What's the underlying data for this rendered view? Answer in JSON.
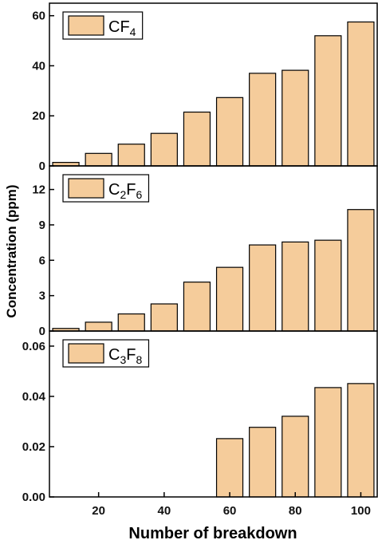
{
  "chart_data": {
    "type": "bar",
    "x": [
      10,
      20,
      30,
      40,
      50,
      60,
      70,
      80,
      90,
      100
    ],
    "xlabel": "Number of breakdown",
    "xlim": [
      5,
      105
    ],
    "xticks": [
      "20",
      "40",
      "60",
      "80",
      "100"
    ],
    "ylabel": "Concentration (ppm)",
    "bar_color": "#f5cc9b",
    "bar_edge_color": "#000000",
    "grid": false,
    "panels": [
      {
        "legend": {
          "base": "C",
          "sub1": "F",
          "sub2": "4",
          "position": "top-left"
        },
        "legend_parts": [
          [
            "CF",
            ""
          ],
          [
            "4",
            "sub"
          ]
        ],
        "ylim": [
          0,
          65
        ],
        "yticks": [
          "0",
          "20",
          "40",
          "60"
        ],
        "values": [
          1.4,
          5.0,
          8.7,
          13.0,
          21.5,
          27.3,
          37.0,
          38.2,
          52.0,
          57.5
        ]
      },
      {
        "legend_parts": [
          [
            "C",
            ""
          ],
          [
            "2",
            "sub"
          ],
          [
            "F",
            ""
          ],
          [
            "6",
            "sub"
          ]
        ],
        "ylim": [
          0,
          14
        ],
        "yticks": [
          "0",
          "3",
          "6",
          "9",
          "12"
        ],
        "values": [
          0.22,
          0.75,
          1.45,
          2.3,
          4.15,
          5.4,
          7.3,
          7.55,
          7.7,
          10.3
        ]
      },
      {
        "legend_parts": [
          [
            "C",
            ""
          ],
          [
            "3",
            "sub"
          ],
          [
            "F",
            ""
          ],
          [
            "8",
            "sub"
          ]
        ],
        "ylim": [
          0,
          0.066
        ],
        "yticks": [
          "0.00",
          "0.02",
          "0.04",
          "0.06"
        ],
        "values": [
          null,
          null,
          null,
          null,
          null,
          0.0232,
          0.0277,
          0.0321,
          0.0435,
          0.0451
        ]
      }
    ]
  }
}
